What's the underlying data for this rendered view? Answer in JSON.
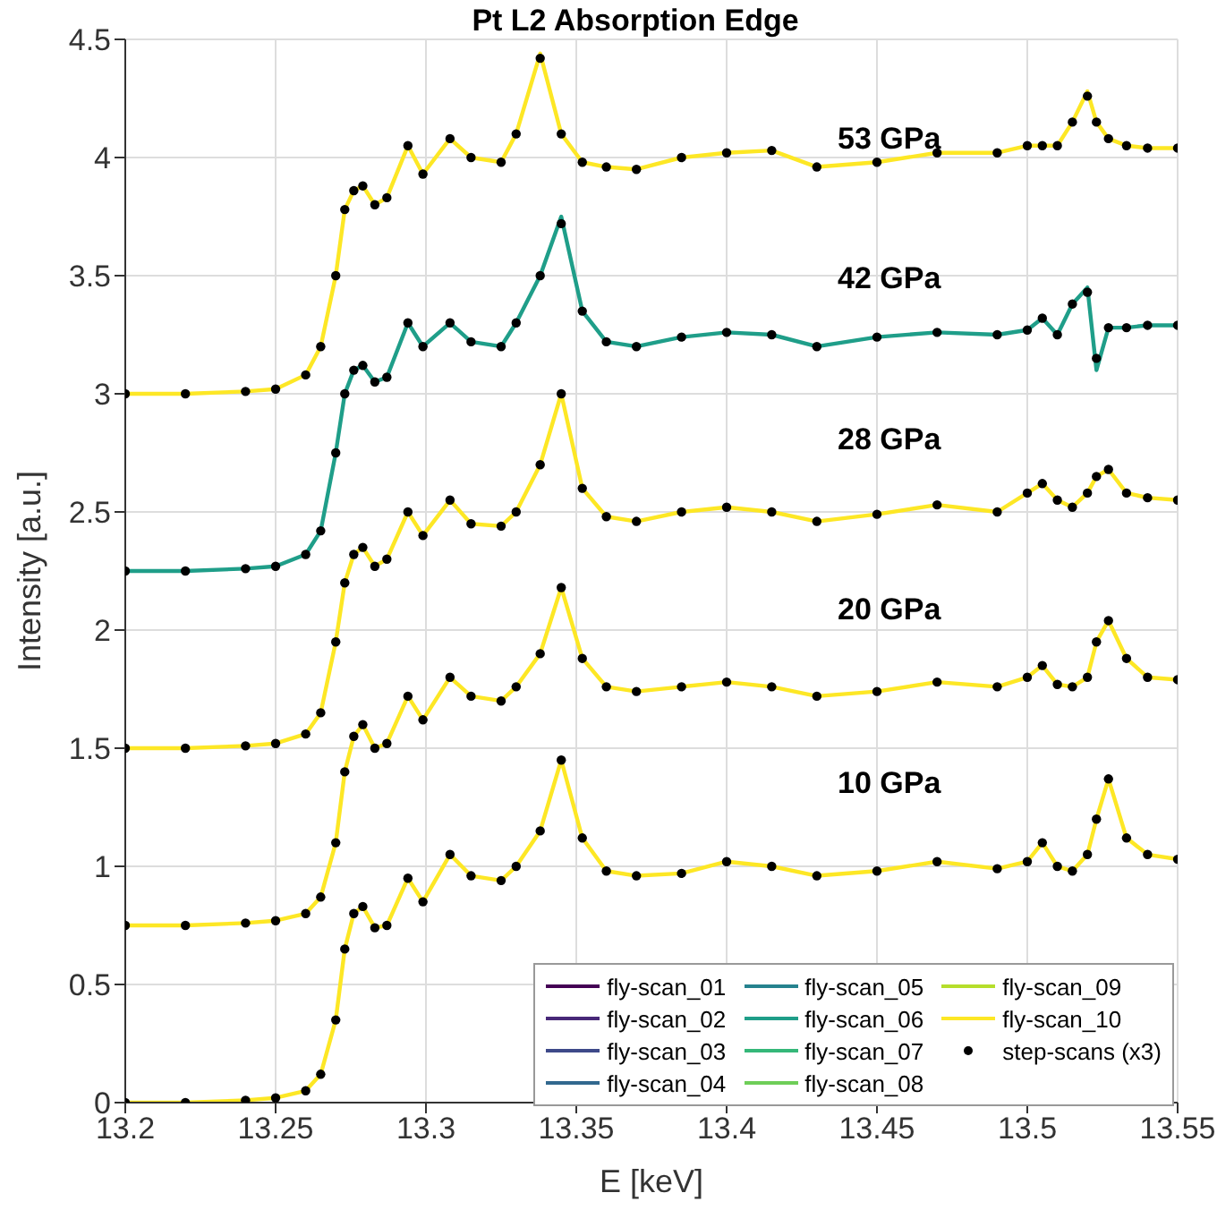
{
  "chart_data": {
    "type": "line",
    "title": "Pt L2 Absorption Edge",
    "xlabel": "E [keV]",
    "ylabel": "Intensity [a.u.]",
    "xlim": [
      13.2,
      13.55
    ],
    "xticks": [
      13.2,
      13.25,
      13.3,
      13.35,
      13.4,
      13.45,
      13.5,
      13.55
    ],
    "ylim": [
      0,
      4.5
    ],
    "yticks": [
      0,
      0.5,
      1,
      1.5,
      2,
      2.5,
      3,
      3.5,
      4,
      4.5
    ],
    "grid": true,
    "legend": "bottom right",
    "line_style": "solid",
    "series": [
      {
        "name": "fly-scan_01",
        "color": "#440154"
      },
      {
        "name": "fly-scan_02",
        "color": "#482878"
      },
      {
        "name": "fly-scan_03",
        "color": "#3e4989"
      },
      {
        "name": "fly-scan_04",
        "color": "#31688e"
      },
      {
        "name": "fly-scan_05",
        "color": "#26828e"
      },
      {
        "name": "fly-scan_06",
        "color": "#1f9e89",
        "x": [
          13.2,
          13.22,
          13.24,
          13.25,
          13.26,
          13.265,
          13.27,
          13.273,
          13.276,
          13.279,
          13.283,
          13.287,
          13.294,
          13.299,
          13.308,
          13.315,
          13.325,
          13.33,
          13.338,
          13.345,
          13.352,
          13.36,
          13.37,
          13.385,
          13.4,
          13.415,
          13.43,
          13.45,
          13.47,
          13.49,
          13.5,
          13.505,
          13.51,
          13.515,
          13.52,
          13.523,
          13.527,
          13.533,
          13.54,
          13.55
        ],
        "values": [
          2.25,
          2.25,
          2.26,
          2.27,
          2.32,
          2.42,
          2.75,
          3.0,
          3.1,
          3.12,
          3.05,
          3.07,
          3.3,
          3.2,
          3.3,
          3.22,
          3.2,
          3.3,
          3.5,
          3.75,
          3.35,
          3.22,
          3.2,
          3.24,
          3.26,
          3.25,
          3.2,
          3.24,
          3.26,
          3.25,
          3.27,
          3.32,
          3.25,
          3.38,
          3.45,
          3.1,
          3.28,
          3.28,
          3.29,
          3.29
        ]
      },
      {
        "name": "fly-scan_07",
        "color": "#35b779"
      },
      {
        "name": "fly-scan_08",
        "color": "#6ece58"
      },
      {
        "name": "fly-scan_09",
        "color": "#b5de2b"
      },
      {
        "name": "fly-scan_10",
        "color": "#fde725",
        "x": [
          13.2,
          13.22,
          13.24,
          13.25,
          13.26,
          13.265,
          13.27,
          13.273,
          13.276,
          13.279,
          13.283,
          13.287,
          13.294,
          13.299,
          13.308,
          13.315,
          13.325,
          13.33,
          13.338,
          13.345,
          13.352,
          13.36,
          13.37,
          13.385,
          13.4,
          13.415,
          13.43,
          13.45,
          13.47,
          13.49,
          13.5,
          13.505,
          13.51,
          13.515,
          13.52,
          13.523,
          13.527,
          13.533,
          13.54,
          13.55,
          13.2,
          13.22,
          13.24,
          13.25,
          13.26,
          13.265,
          13.27,
          13.273,
          13.276,
          13.279,
          13.283,
          13.287,
          13.294,
          13.299,
          13.308,
          13.315,
          13.325,
          13.33,
          13.338,
          13.345,
          13.352,
          13.36,
          13.37,
          13.385,
          13.4,
          13.415,
          13.43,
          13.45,
          13.47,
          13.49,
          13.5,
          13.505,
          13.51,
          13.515,
          13.52,
          13.523,
          13.527,
          13.533,
          13.54,
          13.55,
          13.2,
          13.22,
          13.24,
          13.25,
          13.26,
          13.265,
          13.27,
          13.273,
          13.276,
          13.279,
          13.283,
          13.287,
          13.294,
          13.299,
          13.308,
          13.315,
          13.325,
          13.33,
          13.338,
          13.345,
          13.352,
          13.36,
          13.37,
          13.385,
          13.4,
          13.415,
          13.43,
          13.45,
          13.47,
          13.49,
          13.5,
          13.505,
          13.51,
          13.515,
          13.52,
          13.523,
          13.527,
          13.533,
          13.54,
          13.55,
          13.2,
          13.22,
          13.24,
          13.25,
          13.26,
          13.265,
          13.27,
          13.273,
          13.276,
          13.279,
          13.283,
          13.287,
          13.294,
          13.299,
          13.308,
          13.315,
          13.325,
          13.33,
          13.338,
          13.345,
          13.352,
          13.36,
          13.37,
          13.385,
          13.4,
          13.415,
          13.43,
          13.45,
          13.47,
          13.49,
          13.5,
          13.505,
          13.51,
          13.515,
          13.52,
          13.523,
          13.527,
          13.533,
          13.54,
          13.55
        ],
        "values": [
          0,
          0,
          0.01,
          0.02,
          0.05,
          0.12,
          0.35,
          0.65,
          0.8,
          0.83,
          0.74,
          0.75,
          0.95,
          0.85,
          1.05,
          0.96,
          0.94,
          1.0,
          1.15,
          1.45,
          1.12,
          0.98,
          0.96,
          0.97,
          1.02,
          1.0,
          0.96,
          0.98,
          1.02,
          0.99,
          1.02,
          1.1,
          1.0,
          0.98,
          1.05,
          1.2,
          1.37,
          1.12,
          1.05,
          1.03,
          0.75,
          0.75,
          0.76,
          0.77,
          0.8,
          0.87,
          1.1,
          1.4,
          1.55,
          1.6,
          1.5,
          1.52,
          1.72,
          1.62,
          1.8,
          1.72,
          1.7,
          1.76,
          1.9,
          2.18,
          1.88,
          1.76,
          1.74,
          1.76,
          1.78,
          1.76,
          1.72,
          1.74,
          1.78,
          1.76,
          1.8,
          1.85,
          1.77,
          1.76,
          1.8,
          1.95,
          2.04,
          1.88,
          1.8,
          1.79,
          1.5,
          1.5,
          1.51,
          1.52,
          1.56,
          1.65,
          1.95,
          2.2,
          2.32,
          2.35,
          2.27,
          2.3,
          2.5,
          2.4,
          2.55,
          2.45,
          2.44,
          2.5,
          2.7,
          3.0,
          2.6,
          2.48,
          2.46,
          2.5,
          2.52,
          2.5,
          2.46,
          2.49,
          2.53,
          2.5,
          2.58,
          2.62,
          2.55,
          2.52,
          2.58,
          2.65,
          2.68,
          2.58,
          2.56,
          2.55,
          3,
          3,
          3.01,
          3.02,
          3.08,
          3.2,
          3.5,
          3.78,
          3.86,
          3.88,
          3.8,
          3.83,
          4.05,
          3.93,
          4.08,
          4.0,
          3.98,
          4.1,
          4.44,
          4.1,
          3.98,
          3.96,
          3.95,
          4.0,
          4.02,
          4.03,
          3.96,
          3.98,
          4.02,
          4.02,
          4.05,
          4.05,
          4.05,
          4.15,
          4.28,
          4.15,
          4.08,
          4.05,
          4.04,
          4.04
        ]
      },
      {
        "name": "step-scans (x3)",
        "type": "scatter",
        "color": "#000000",
        "marker": "circle",
        "x": [
          13.2,
          13.22,
          13.24,
          13.25,
          13.26,
          13.265,
          13.27,
          13.273,
          13.276,
          13.279,
          13.283,
          13.287,
          13.294,
          13.299,
          13.308,
          13.315,
          13.325,
          13.33,
          13.338,
          13.345,
          13.352,
          13.36,
          13.37,
          13.385,
          13.4,
          13.415,
          13.43,
          13.45,
          13.47,
          13.49,
          13.5,
          13.505,
          13.51,
          13.515,
          13.52,
          13.523,
          13.527,
          13.533,
          13.54,
          13.55,
          13.2,
          13.22,
          13.24,
          13.25,
          13.26,
          13.265,
          13.27,
          13.273,
          13.276,
          13.279,
          13.283,
          13.287,
          13.294,
          13.299,
          13.308,
          13.315,
          13.325,
          13.33,
          13.338,
          13.345,
          13.352,
          13.36,
          13.37,
          13.385,
          13.4,
          13.415,
          13.43,
          13.45,
          13.47,
          13.49,
          13.5,
          13.505,
          13.51,
          13.515,
          13.52,
          13.523,
          13.527,
          13.533,
          13.54,
          13.55,
          13.2,
          13.22,
          13.24,
          13.25,
          13.26,
          13.265,
          13.27,
          13.273,
          13.276,
          13.279,
          13.283,
          13.287,
          13.294,
          13.299,
          13.308,
          13.315,
          13.325,
          13.33,
          13.338,
          13.345,
          13.352,
          13.36,
          13.37,
          13.385,
          13.4,
          13.415,
          13.43,
          13.45,
          13.47,
          13.49,
          13.5,
          13.505,
          13.51,
          13.515,
          13.52,
          13.523,
          13.527,
          13.533,
          13.54,
          13.55,
          13.2,
          13.22,
          13.24,
          13.25,
          13.26,
          13.265,
          13.27,
          13.273,
          13.276,
          13.279,
          13.283,
          13.287,
          13.294,
          13.299,
          13.308,
          13.315,
          13.325,
          13.33,
          13.338,
          13.345,
          13.352,
          13.36,
          13.37,
          13.385,
          13.4,
          13.415,
          13.43,
          13.45,
          13.47,
          13.49,
          13.5,
          13.505,
          13.51,
          13.515,
          13.52,
          13.523,
          13.527,
          13.533,
          13.54,
          13.55,
          13.2,
          13.22,
          13.24,
          13.25,
          13.26,
          13.265,
          13.27,
          13.273,
          13.276,
          13.279,
          13.283,
          13.287,
          13.294,
          13.299,
          13.308,
          13.315,
          13.325,
          13.33,
          13.338,
          13.345,
          13.352,
          13.36,
          13.37,
          13.385,
          13.4,
          13.415,
          13.43,
          13.45,
          13.47,
          13.49,
          13.5,
          13.505,
          13.51,
          13.515,
          13.52,
          13.523,
          13.527,
          13.533,
          13.54,
          13.55
        ],
        "values": [
          0,
          0,
          0.01,
          0.02,
          0.05,
          0.12,
          0.35,
          0.65,
          0.8,
          0.83,
          0.74,
          0.75,
          0.95,
          0.85,
          1.05,
          0.96,
          0.94,
          1.0,
          1.15,
          1.45,
          1.12,
          0.98,
          0.96,
          0.97,
          1.02,
          1.0,
          0.96,
          0.98,
          1.02,
          0.99,
          1.02,
          1.1,
          1.0,
          0.98,
          1.05,
          1.2,
          1.37,
          1.12,
          1.05,
          1.03,
          0.75,
          0.75,
          0.76,
          0.77,
          0.8,
          0.87,
          1.1,
          1.4,
          1.55,
          1.6,
          1.5,
          1.52,
          1.72,
          1.62,
          1.8,
          1.72,
          1.7,
          1.76,
          1.9,
          2.18,
          1.88,
          1.76,
          1.74,
          1.76,
          1.78,
          1.76,
          1.72,
          1.74,
          1.78,
          1.76,
          1.8,
          1.85,
          1.77,
          1.76,
          1.8,
          1.95,
          2.04,
          1.88,
          1.8,
          1.79,
          1.5,
          1.5,
          1.51,
          1.52,
          1.56,
          1.65,
          1.95,
          2.2,
          2.32,
          2.35,
          2.27,
          2.3,
          2.5,
          2.4,
          2.55,
          2.45,
          2.44,
          2.5,
          2.7,
          3.0,
          2.6,
          2.48,
          2.46,
          2.5,
          2.52,
          2.5,
          2.46,
          2.49,
          2.53,
          2.5,
          2.58,
          2.62,
          2.55,
          2.52,
          2.58,
          2.65,
          2.68,
          2.58,
          2.56,
          2.55,
          2.25,
          2.25,
          2.26,
          2.27,
          2.32,
          2.42,
          2.75,
          3.0,
          3.1,
          3.12,
          3.05,
          3.07,
          3.3,
          3.2,
          3.3,
          3.22,
          3.2,
          3.3,
          3.5,
          3.72,
          3.35,
          3.22,
          3.2,
          3.24,
          3.26,
          3.25,
          3.2,
          3.24,
          3.26,
          3.25,
          3.27,
          3.32,
          3.25,
          3.38,
          3.43,
          3.15,
          3.28,
          3.28,
          3.29,
          3.29,
          3,
          3,
          3.01,
          3.02,
          3.08,
          3.2,
          3.5,
          3.78,
          3.86,
          3.88,
          3.8,
          3.83,
          4.05,
          3.93,
          4.08,
          4.0,
          3.98,
          4.1,
          4.42,
          4.1,
          3.98,
          3.96,
          3.95,
          4.0,
          4.02,
          4.03,
          3.96,
          3.98,
          4.02,
          4.02,
          4.05,
          4.05,
          4.05,
          4.15,
          4.26,
          4.15,
          4.08,
          4.05,
          4.04,
          4.04
        ]
      }
    ],
    "annotations": [
      "53 GPa",
      "42 GPa",
      "28 GPa",
      "20 GPa",
      "10 GPa"
    ]
  }
}
